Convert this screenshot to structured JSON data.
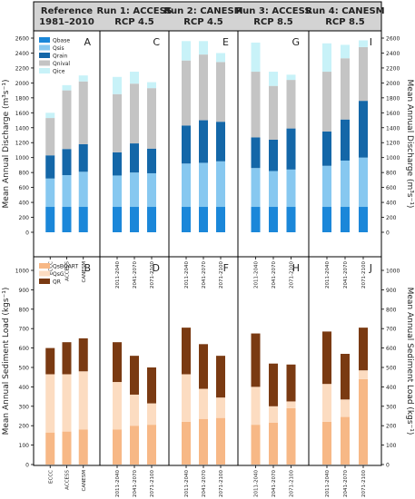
{
  "headers": [
    {
      "line1": "Reference",
      "line2": "1981–2010"
    },
    {
      "line1": "Run 1: ACCESS",
      "line2": "RCP 4.5"
    },
    {
      "line1": "Run 2: CANESM",
      "line2": "RCP 4.5"
    },
    {
      "line1": "Run 3: ACCESS",
      "line2": "RCP 8.5"
    },
    {
      "line1": "Run 4: CANESM",
      "line2": "RCP 8.5"
    }
  ],
  "colors": {
    "header_bg": "#d3d3d3",
    "qbase": "#1b87d9",
    "qsis": "#87c8f0",
    "qrain": "#1467a8",
    "qnival": "#c4c4c4",
    "qice": "#c8f2f8",
    "qsbqart": "#f7b886",
    "qsg": "#fcdcc1",
    "qr": "#7a3a12"
  },
  "chart_data": [
    {
      "type": "bar",
      "stacked": true,
      "ylabel": "Mean Annual Discharge (m³s⁻¹)",
      "ylim": [
        0,
        2600
      ],
      "yticks": [
        0,
        200,
        400,
        600,
        800,
        1000,
        1200,
        1400,
        1600,
        1800,
        2000,
        2200,
        2400,
        2600
      ],
      "legend": {
        "placement": "top-left",
        "labels": [
          "Qbase",
          "Qsis",
          "Qrain",
          "Qnival",
          "Qice"
        ]
      },
      "series_keys": [
        "qbase",
        "qsis",
        "qrain",
        "qnival",
        "qice"
      ],
      "panels": [
        {
          "letter": "A",
          "categories": [
            "ECCC",
            "ACCESS",
            "CANESM"
          ],
          "series": [
            {
              "name": "Qbase",
              "values": [
                340,
                340,
                340
              ]
            },
            {
              "name": "Qsis",
              "values": [
                380,
                425,
                470
              ]
            },
            {
              "name": "Qrain",
              "values": [
                310,
                350,
                370
              ]
            },
            {
              "name": "Qnival",
              "values": [
                500,
                785,
                840
              ]
            },
            {
              "name": "Qice",
              "values": [
                70,
                70,
                80
              ]
            }
          ]
        },
        {
          "letter": "C",
          "categories": [
            "2011-2040",
            "2041-2070",
            "2071-2100"
          ],
          "series": [
            {
              "name": "Qbase",
              "values": [
                340,
                340,
                340
              ]
            },
            {
              "name": "Qsis",
              "values": [
                420,
                460,
                450
              ]
            },
            {
              "name": "Qrain",
              "values": [
                310,
                390,
                330
              ]
            },
            {
              "name": "Qnival",
              "values": [
                780,
                800,
                810
              ]
            },
            {
              "name": "Qice",
              "values": [
                230,
                160,
                80
              ]
            }
          ]
        },
        {
          "letter": "E",
          "categories": [
            "2011-2040",
            "2041-2070",
            "2071-2100"
          ],
          "series": [
            {
              "name": "Qbase",
              "values": [
                340,
                340,
                340
              ]
            },
            {
              "name": "Qsis",
              "values": [
                580,
                590,
                610
              ]
            },
            {
              "name": "Qrain",
              "values": [
                510,
                570,
                530
              ]
            },
            {
              "name": "Qnival",
              "values": [
                870,
                880,
                800
              ]
            },
            {
              "name": "Qice",
              "values": [
                260,
                180,
                120
              ]
            }
          ]
        },
        {
          "letter": "G",
          "categories": [
            "2011-2040",
            "2041-2070",
            "2071-2100"
          ],
          "series": [
            {
              "name": "Qbase",
              "values": [
                340,
                340,
                340
              ]
            },
            {
              "name": "Qsis",
              "values": [
                520,
                480,
                500
              ]
            },
            {
              "name": "Qrain",
              "values": [
                410,
                420,
                550
              ]
            },
            {
              "name": "Qnival",
              "values": [
                880,
                720,
                650
              ]
            },
            {
              "name": "Qice",
              "values": [
                390,
                190,
                70
              ]
            }
          ]
        },
        {
          "letter": "I",
          "categories": [
            "2011-2040",
            "2041-2070",
            "2071-2100"
          ],
          "series": [
            {
              "name": "Qbase",
              "values": [
                340,
                340,
                340
              ]
            },
            {
              "name": "Qsis",
              "values": [
                550,
                620,
                660
              ]
            },
            {
              "name": "Qrain",
              "values": [
                460,
                550,
                760
              ]
            },
            {
              "name": "Qnival",
              "values": [
                800,
                820,
                720
              ]
            },
            {
              "name": "Qice",
              "values": [
                380,
                180,
                90
              ]
            }
          ]
        }
      ]
    },
    {
      "type": "bar",
      "stacked": true,
      "ylabel": "Mean Annual Sediment Load (kgs⁻¹)",
      "ylim": [
        0,
        1000
      ],
      "yticks": [
        0,
        100,
        200,
        300,
        400,
        500,
        600,
        700,
        800,
        900,
        1000
      ],
      "legend": {
        "placement": "top-left",
        "labels": [
          "QsBQART",
          "QsG",
          "QR"
        ]
      },
      "series_keys": [
        "qsbqart",
        "qsg",
        "qr"
      ],
      "panels": [
        {
          "letter": "B",
          "categories": [
            "ECCC",
            "ACCESS",
            "CANESM"
          ],
          "series": [
            {
              "name": "QsBQART",
              "values": [
                165,
                170,
                180
              ]
            },
            {
              "name": "QsG",
              "values": [
                300,
                295,
                300
              ]
            },
            {
              "name": "QR",
              "values": [
                135,
                165,
                170
              ]
            }
          ]
        },
        {
          "letter": "D",
          "categories": [
            "2011-2040",
            "2041-2070",
            "2071-2100"
          ],
          "series": [
            {
              "name": "QsBQART",
              "values": [
                180,
                200,
                205
              ]
            },
            {
              "name": "QsG",
              "values": [
                245,
                160,
                110
              ]
            },
            {
              "name": "QR",
              "values": [
                205,
                200,
                185
              ]
            }
          ]
        },
        {
          "letter": "F",
          "categories": [
            "2011-2040",
            "2041-2070",
            "2071-2100"
          ],
          "series": [
            {
              "name": "QsBQART",
              "values": [
                220,
                235,
                240
              ]
            },
            {
              "name": "QsG",
              "values": [
                245,
                155,
                105
              ]
            },
            {
              "name": "QR",
              "values": [
                240,
                230,
                215
              ]
            }
          ]
        },
        {
          "letter": "H",
          "categories": [
            "2011-2040",
            "2041-2070",
            "2071-2100"
          ],
          "series": [
            {
              "name": "QsBQART",
              "values": [
                205,
                215,
                290
              ]
            },
            {
              "name": "QsG",
              "values": [
                195,
                85,
                35
              ]
            },
            {
              "name": "QR",
              "values": [
                275,
                220,
                190
              ]
            }
          ]
        },
        {
          "letter": "J",
          "categories": [
            "2011-2040",
            "2041-2070",
            "2071-2100"
          ],
          "series": [
            {
              "name": "QsBQART",
              "values": [
                220,
                245,
                440
              ]
            },
            {
              "name": "QsG",
              "values": [
                195,
                90,
                45
              ]
            },
            {
              "name": "QR",
              "values": [
                270,
                235,
                220
              ]
            }
          ]
        }
      ]
    }
  ]
}
